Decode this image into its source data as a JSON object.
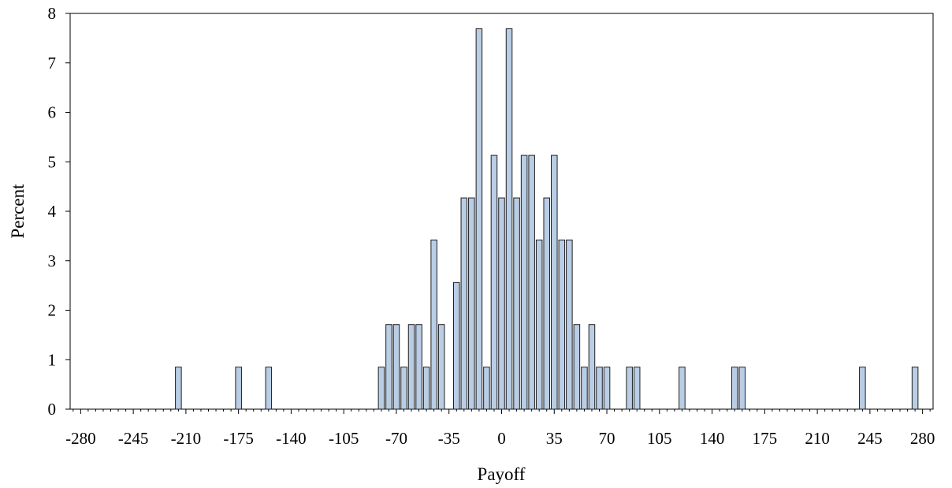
{
  "chart_data": {
    "type": "bar",
    "xlabel": "Payoff",
    "ylabel": "Percent",
    "xlim": [
      -287,
      287
    ],
    "ylim": [
      0,
      8
    ],
    "bin_width": 5,
    "x_ticks": [
      "-280",
      "-245",
      "-210",
      "-175",
      "-140",
      "-105",
      "-70",
      "-35",
      "0",
      "35",
      "70",
      "105",
      "140",
      "175",
      "210",
      "245",
      "280"
    ],
    "y_ticks": [
      "0",
      "1",
      "2",
      "3",
      "4",
      "5",
      "6",
      "7",
      "8"
    ],
    "grid": false,
    "legend": "none",
    "bar_fill": "#b9cde5",
    "bar_stroke": "#1f1f1f",
    "bins": [
      {
        "x": -215,
        "value": 0.85
      },
      {
        "x": -175,
        "value": 0.85
      },
      {
        "x": -155,
        "value": 0.85
      },
      {
        "x": -80,
        "value": 0.85
      },
      {
        "x": -75,
        "value": 1.71
      },
      {
        "x": -70,
        "value": 1.71
      },
      {
        "x": -65,
        "value": 0.85
      },
      {
        "x": -60,
        "value": 1.71
      },
      {
        "x": -55,
        "value": 1.71
      },
      {
        "x": -50,
        "value": 0.85
      },
      {
        "x": -45,
        "value": 3.42
      },
      {
        "x": -40,
        "value": 1.71
      },
      {
        "x": -30,
        "value": 2.56
      },
      {
        "x": -25,
        "value": 4.27
      },
      {
        "x": -20,
        "value": 4.27
      },
      {
        "x": -15,
        "value": 7.69
      },
      {
        "x": -10,
        "value": 0.85
      },
      {
        "x": -5,
        "value": 5.13
      },
      {
        "x": 0,
        "value": 4.27
      },
      {
        "x": 5,
        "value": 7.69
      },
      {
        "x": 10,
        "value": 4.27
      },
      {
        "x": 15,
        "value": 5.13
      },
      {
        "x": 20,
        "value": 5.13
      },
      {
        "x": 25,
        "value": 3.42
      },
      {
        "x": 30,
        "value": 4.27
      },
      {
        "x": 35,
        "value": 5.13
      },
      {
        "x": 40,
        "value": 3.42
      },
      {
        "x": 45,
        "value": 3.42
      },
      {
        "x": 50,
        "value": 1.71
      },
      {
        "x": 55,
        "value": 0.85
      },
      {
        "x": 60,
        "value": 1.71
      },
      {
        "x": 65,
        "value": 0.85
      },
      {
        "x": 70,
        "value": 0.85
      },
      {
        "x": 85,
        "value": 0.85
      },
      {
        "x": 90,
        "value": 0.85
      },
      {
        "x": 120,
        "value": 0.85
      },
      {
        "x": 155,
        "value": 0.85
      },
      {
        "x": 160,
        "value": 0.85
      },
      {
        "x": 240,
        "value": 0.85
      },
      {
        "x": 275,
        "value": 0.85
      }
    ]
  }
}
